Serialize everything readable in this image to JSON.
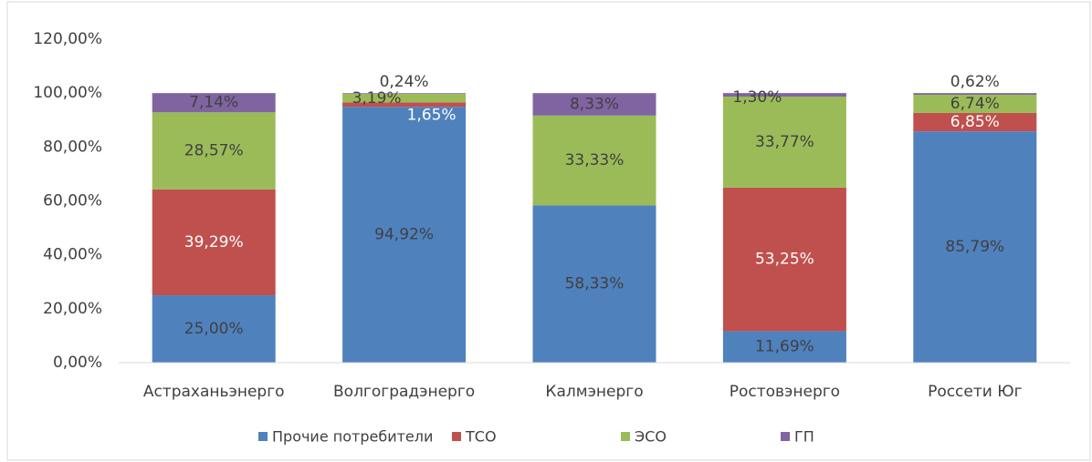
{
  "chart_data": {
    "type": "stacked_bar",
    "categories": [
      "Астраханьэнерго",
      "Волгоградэнерго",
      "Калмэнерго",
      "Ростовэнерго",
      "Россети Юг"
    ],
    "series": [
      {
        "name": "Прочие потребители",
        "color": "#4f81bd",
        "values": [
          25.0,
          94.92,
          58.33,
          11.69,
          85.79
        ],
        "value_labels": [
          "25,00%",
          "94,92%",
          "58,33%",
          "11,69%",
          "85,79%"
        ]
      },
      {
        "name": "ТСО",
        "color": "#c0504d",
        "values": [
          39.29,
          1.65,
          null,
          53.25,
          6.85
        ],
        "value_labels": [
          "39,29%",
          "1,65%",
          null,
          "53,25%",
          "6,85%"
        ]
      },
      {
        "name": "ЭСО",
        "color": "#9bbb59",
        "values": [
          28.57,
          3.19,
          33.33,
          33.77,
          6.74
        ],
        "value_labels": [
          "28,57%",
          "3,19%",
          "33,33%",
          "33,77%",
          "6,74%"
        ]
      },
      {
        "name": "ГП",
        "color": "#8064a2",
        "values": [
          7.14,
          0.24,
          8.33,
          1.3,
          0.62
        ],
        "value_labels": [
          "7,14%",
          "0,24%",
          "8,33%",
          "1,30%",
          "0,62%"
        ]
      }
    ],
    "ylim": [
      0,
      120
    ],
    "yticks": [
      {
        "value": 0,
        "label": "0,00%"
      },
      {
        "value": 20,
        "label": "20,00%"
      },
      {
        "value": 40,
        "label": "40,00%"
      },
      {
        "value": 60,
        "label": "60,00%"
      },
      {
        "value": 80,
        "label": "80,00%"
      },
      {
        "value": 100,
        "label": "100,00%"
      },
      {
        "value": 120,
        "label": "120,00%"
      }
    ],
    "grid": false,
    "legend": "bottom"
  }
}
